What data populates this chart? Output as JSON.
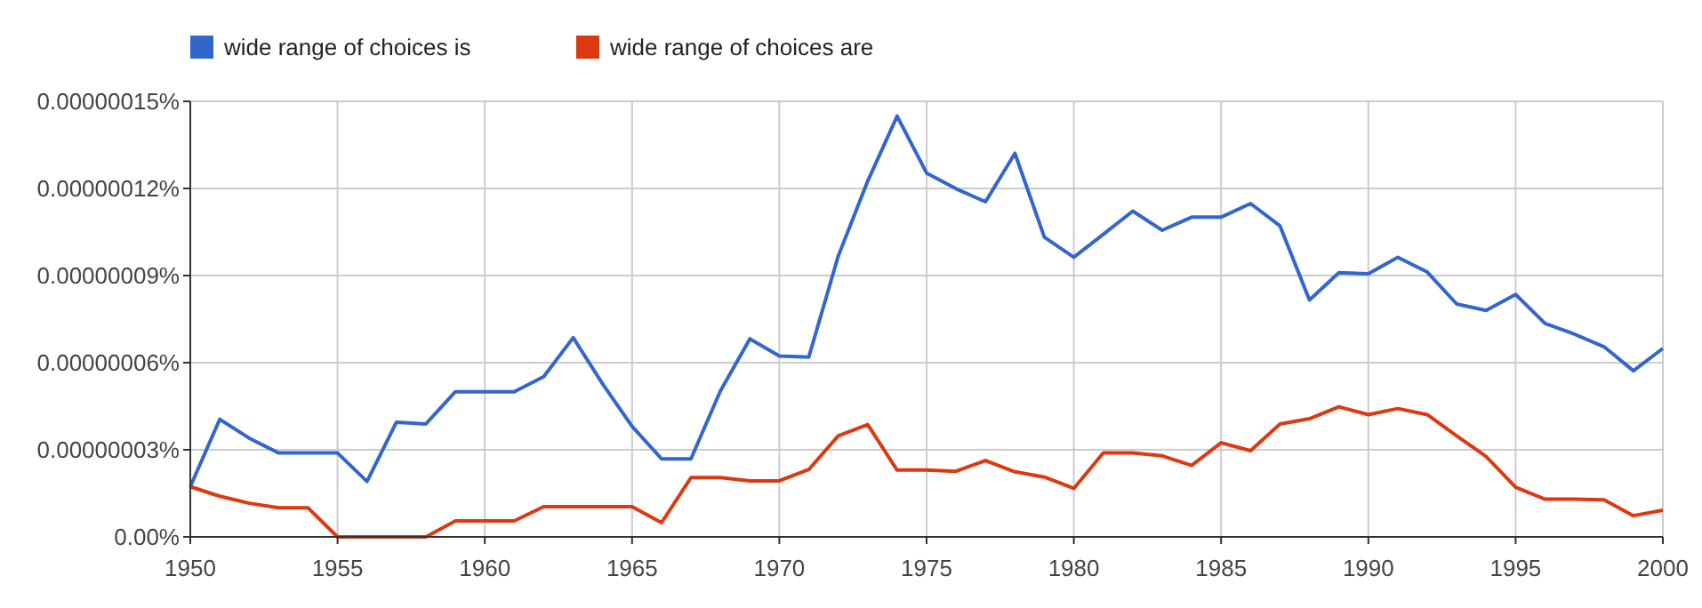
{
  "chart_data": {
    "type": "line",
    "x": [
      1950,
      1951,
      1952,
      1953,
      1954,
      1955,
      1956,
      1957,
      1958,
      1959,
      1960,
      1961,
      1962,
      1963,
      1964,
      1965,
      1966,
      1967,
      1968,
      1969,
      1970,
      1971,
      1972,
      1973,
      1974,
      1975,
      1976,
      1977,
      1978,
      1979,
      1980,
      1981,
      1982,
      1983,
      1984,
      1985,
      1986,
      1987,
      1988,
      1989,
      1990,
      1991,
      1992,
      1993,
      1994,
      1995,
      1996,
      1997,
      1998,
      1999,
      2000
    ],
    "series": [
      {
        "name": "wide range of choices is",
        "color": "#3366cc",
        "values": [
          1.73e-08,
          4.05e-08,
          3.4e-08,
          2.89e-08,
          2.89e-08,
          2.89e-08,
          1.91e-08,
          3.95e-08,
          3.89e-08,
          5e-08,
          5e-08,
          5e-08,
          5.52e-08,
          6.86e-08,
          5.27e-08,
          3.81e-08,
          2.69e-08,
          2.69e-08,
          5.03e-08,
          6.82e-08,
          6.23e-08,
          6.19e-08,
          9.67e-08,
          1.225e-07,
          1.449e-07,
          1.253e-07,
          1.199e-07,
          1.154e-07,
          1.321e-07,
          1.032e-07,
          9.63e-08,
          1.042e-07,
          1.122e-07,
          1.056e-07,
          1.101e-07,
          1.101e-07,
          1.148e-07,
          1.071e-07,
          8.16e-08,
          9.1e-08,
          9.06e-08,
          9.63e-08,
          9.12e-08,
          8.02e-08,
          7.8e-08,
          8.35e-08,
          7.35e-08,
          6.98e-08,
          6.55e-08,
          5.72e-08,
          6.49e-08
        ]
      },
      {
        "name": "wide range of choices are",
        "color": "#dc3912",
        "values": [
          1.73e-08,
          1.4e-08,
          1.16e-08,
          1e-08,
          1e-08,
          0,
          0,
          0,
          0,
          5.5e-09,
          5.5e-09,
          5.5e-09,
          1.04e-08,
          1.04e-08,
          1.04e-08,
          1.04e-08,
          4.9e-09,
          2.04e-08,
          2.04e-08,
          1.93e-08,
          1.93e-08,
          2.32e-08,
          3.48e-08,
          3.87e-08,
          2.3e-08,
          2.3e-08,
          2.26e-08,
          2.63e-08,
          2.24e-08,
          2.06e-08,
          1.67e-08,
          2.89e-08,
          2.89e-08,
          2.79e-08,
          2.46e-08,
          3.24e-08,
          2.97e-08,
          3.89e-08,
          4.07e-08,
          4.48e-08,
          4.21e-08,
          4.42e-08,
          4.21e-08,
          3.48e-08,
          2.77e-08,
          1.71e-08,
          1.3e-08,
          1.3e-08,
          1.28e-08,
          7.3e-09,
          9.2e-09
        ]
      }
    ],
    "xlim": [
      1950,
      2000
    ],
    "xticks": [
      1950,
      1955,
      1960,
      1965,
      1970,
      1975,
      1980,
      1985,
      1990,
      1995,
      2000
    ],
    "ylim": [
      0,
      1.5e-07
    ],
    "yticks": [
      {
        "value": 0,
        "label": "0.00%"
      },
      {
        "value": 3e-08,
        "label": "0.00000003%"
      },
      {
        "value": 6e-08,
        "label": "0.00000006%"
      },
      {
        "value": 9e-08,
        "label": "0.00000009%"
      },
      {
        "value": 1.2e-07,
        "label": "0.00000012%"
      },
      {
        "value": 1.5e-07,
        "label": "0.00000015%"
      }
    ],
    "grid": true,
    "legend": "top left"
  }
}
